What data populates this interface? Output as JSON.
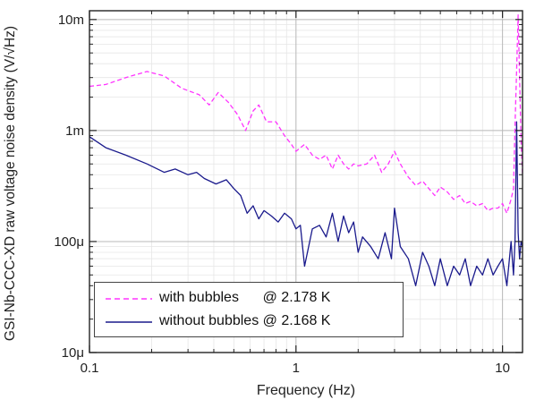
{
  "chart_data": {
    "type": "line",
    "title": "",
    "xlabel": "Frequency (Hz)",
    "ylabel": "GSI-Nb-CCC-XD raw voltage noise density (V/√Hz)",
    "x_scale": "log",
    "y_scale": "log",
    "xlim": [
      0.1,
      12.5
    ],
    "ylim": [
      1e-05,
      0.012
    ],
    "x_ticks": [
      0.1,
      1,
      10
    ],
    "x_tick_labels": [
      "0.1",
      "1",
      "10"
    ],
    "y_ticks": [
      1e-05,
      0.0001,
      0.001,
      0.01
    ],
    "y_tick_labels": [
      "10μ",
      "100μ",
      "1m",
      "10m"
    ],
    "grid": true,
    "legend_position": "bottom-left",
    "series": [
      {
        "name": "with bubbles      @ 2.178 K",
        "color": "#ff33ff",
        "style": "dashed",
        "x": [
          0.1,
          0.12,
          0.15,
          0.19,
          0.23,
          0.28,
          0.34,
          0.38,
          0.42,
          0.47,
          0.52,
          0.57,
          0.62,
          0.66,
          0.72,
          0.8,
          0.88,
          0.95,
          1.0,
          1.1,
          1.2,
          1.3,
          1.4,
          1.5,
          1.6,
          1.7,
          1.8,
          1.9,
          2.0,
          2.2,
          2.4,
          2.6,
          2.8,
          3.0,
          3.2,
          3.5,
          3.8,
          4.1,
          4.4,
          4.7,
          5.0,
          5.4,
          5.8,
          6.2,
          6.6,
          7.0,
          7.5,
          8.0,
          8.5,
          9.0,
          9.5,
          10.0,
          10.5,
          11.0,
          11.3,
          11.5,
          11.7,
          11.9,
          12.1,
          12.3,
          12.5
        ],
        "y": [
          0.0025,
          0.0026,
          0.003,
          0.0034,
          0.0031,
          0.0024,
          0.0021,
          0.0017,
          0.0022,
          0.0018,
          0.0014,
          0.001,
          0.0015,
          0.0017,
          0.0012,
          0.0012,
          0.0009,
          0.00075,
          0.00065,
          0.00075,
          0.0006,
          0.00055,
          0.0006,
          0.00045,
          0.0006,
          0.0005,
          0.00045,
          0.0005,
          0.00048,
          0.0005,
          0.0006,
          0.00042,
          0.0005,
          0.00065,
          0.0005,
          0.00038,
          0.00032,
          0.00035,
          0.0003,
          0.00026,
          0.00031,
          0.00028,
          0.00024,
          0.00026,
          0.00022,
          0.00023,
          0.00021,
          0.00022,
          0.00019,
          0.0002,
          0.0002,
          0.00022,
          0.00018,
          0.00024,
          0.0003,
          0.0011,
          0.0035,
          0.011,
          0.003,
          0.0008,
          0.0004
        ]
      },
      {
        "name": "without bubbles @ 2.168 K",
        "color": "#1a1a8c",
        "style": "solid",
        "x": [
          0.1,
          0.12,
          0.15,
          0.19,
          0.23,
          0.26,
          0.3,
          0.33,
          0.36,
          0.41,
          0.46,
          0.5,
          0.54,
          0.58,
          0.62,
          0.66,
          0.7,
          0.76,
          0.82,
          0.88,
          0.95,
          1.0,
          1.05,
          1.1,
          1.2,
          1.3,
          1.4,
          1.5,
          1.6,
          1.7,
          1.8,
          1.9,
          2.0,
          2.1,
          2.3,
          2.5,
          2.7,
          2.9,
          3.0,
          3.2,
          3.5,
          3.8,
          4.1,
          4.4,
          4.7,
          5.0,
          5.4,
          5.8,
          6.2,
          6.6,
          7.0,
          7.5,
          8.0,
          8.5,
          9.0,
          9.5,
          10.0,
          10.5,
          11.0,
          11.3,
          11.5,
          11.7,
          11.9,
          12.1,
          12.3,
          12.5
        ],
        "y": [
          0.00088,
          0.0007,
          0.0006,
          0.0005,
          0.00042,
          0.00045,
          0.0004,
          0.00042,
          0.00037,
          0.00033,
          0.00036,
          0.0003,
          0.00026,
          0.00018,
          0.00021,
          0.00016,
          0.00019,
          0.00017,
          0.00015,
          0.00018,
          0.00016,
          0.00013,
          0.00014,
          6e-05,
          0.00013,
          0.00014,
          0.00011,
          0.00018,
          0.0001,
          0.00017,
          0.00012,
          0.00015,
          8e-05,
          0.00011,
          9e-05,
          7e-05,
          0.00012,
          7e-05,
          0.0002,
          9e-05,
          7e-05,
          4e-05,
          8e-05,
          6e-05,
          4e-05,
          7e-05,
          4e-05,
          6e-05,
          5e-05,
          7e-05,
          4e-05,
          6e-05,
          5e-05,
          7e-05,
          5e-05,
          6e-05,
          7e-05,
          4e-05,
          0.0001,
          5e-05,
          0.0001,
          0.0012,
          0.00012,
          7e-05,
          0.0001,
          9e-05
        ]
      }
    ]
  }
}
